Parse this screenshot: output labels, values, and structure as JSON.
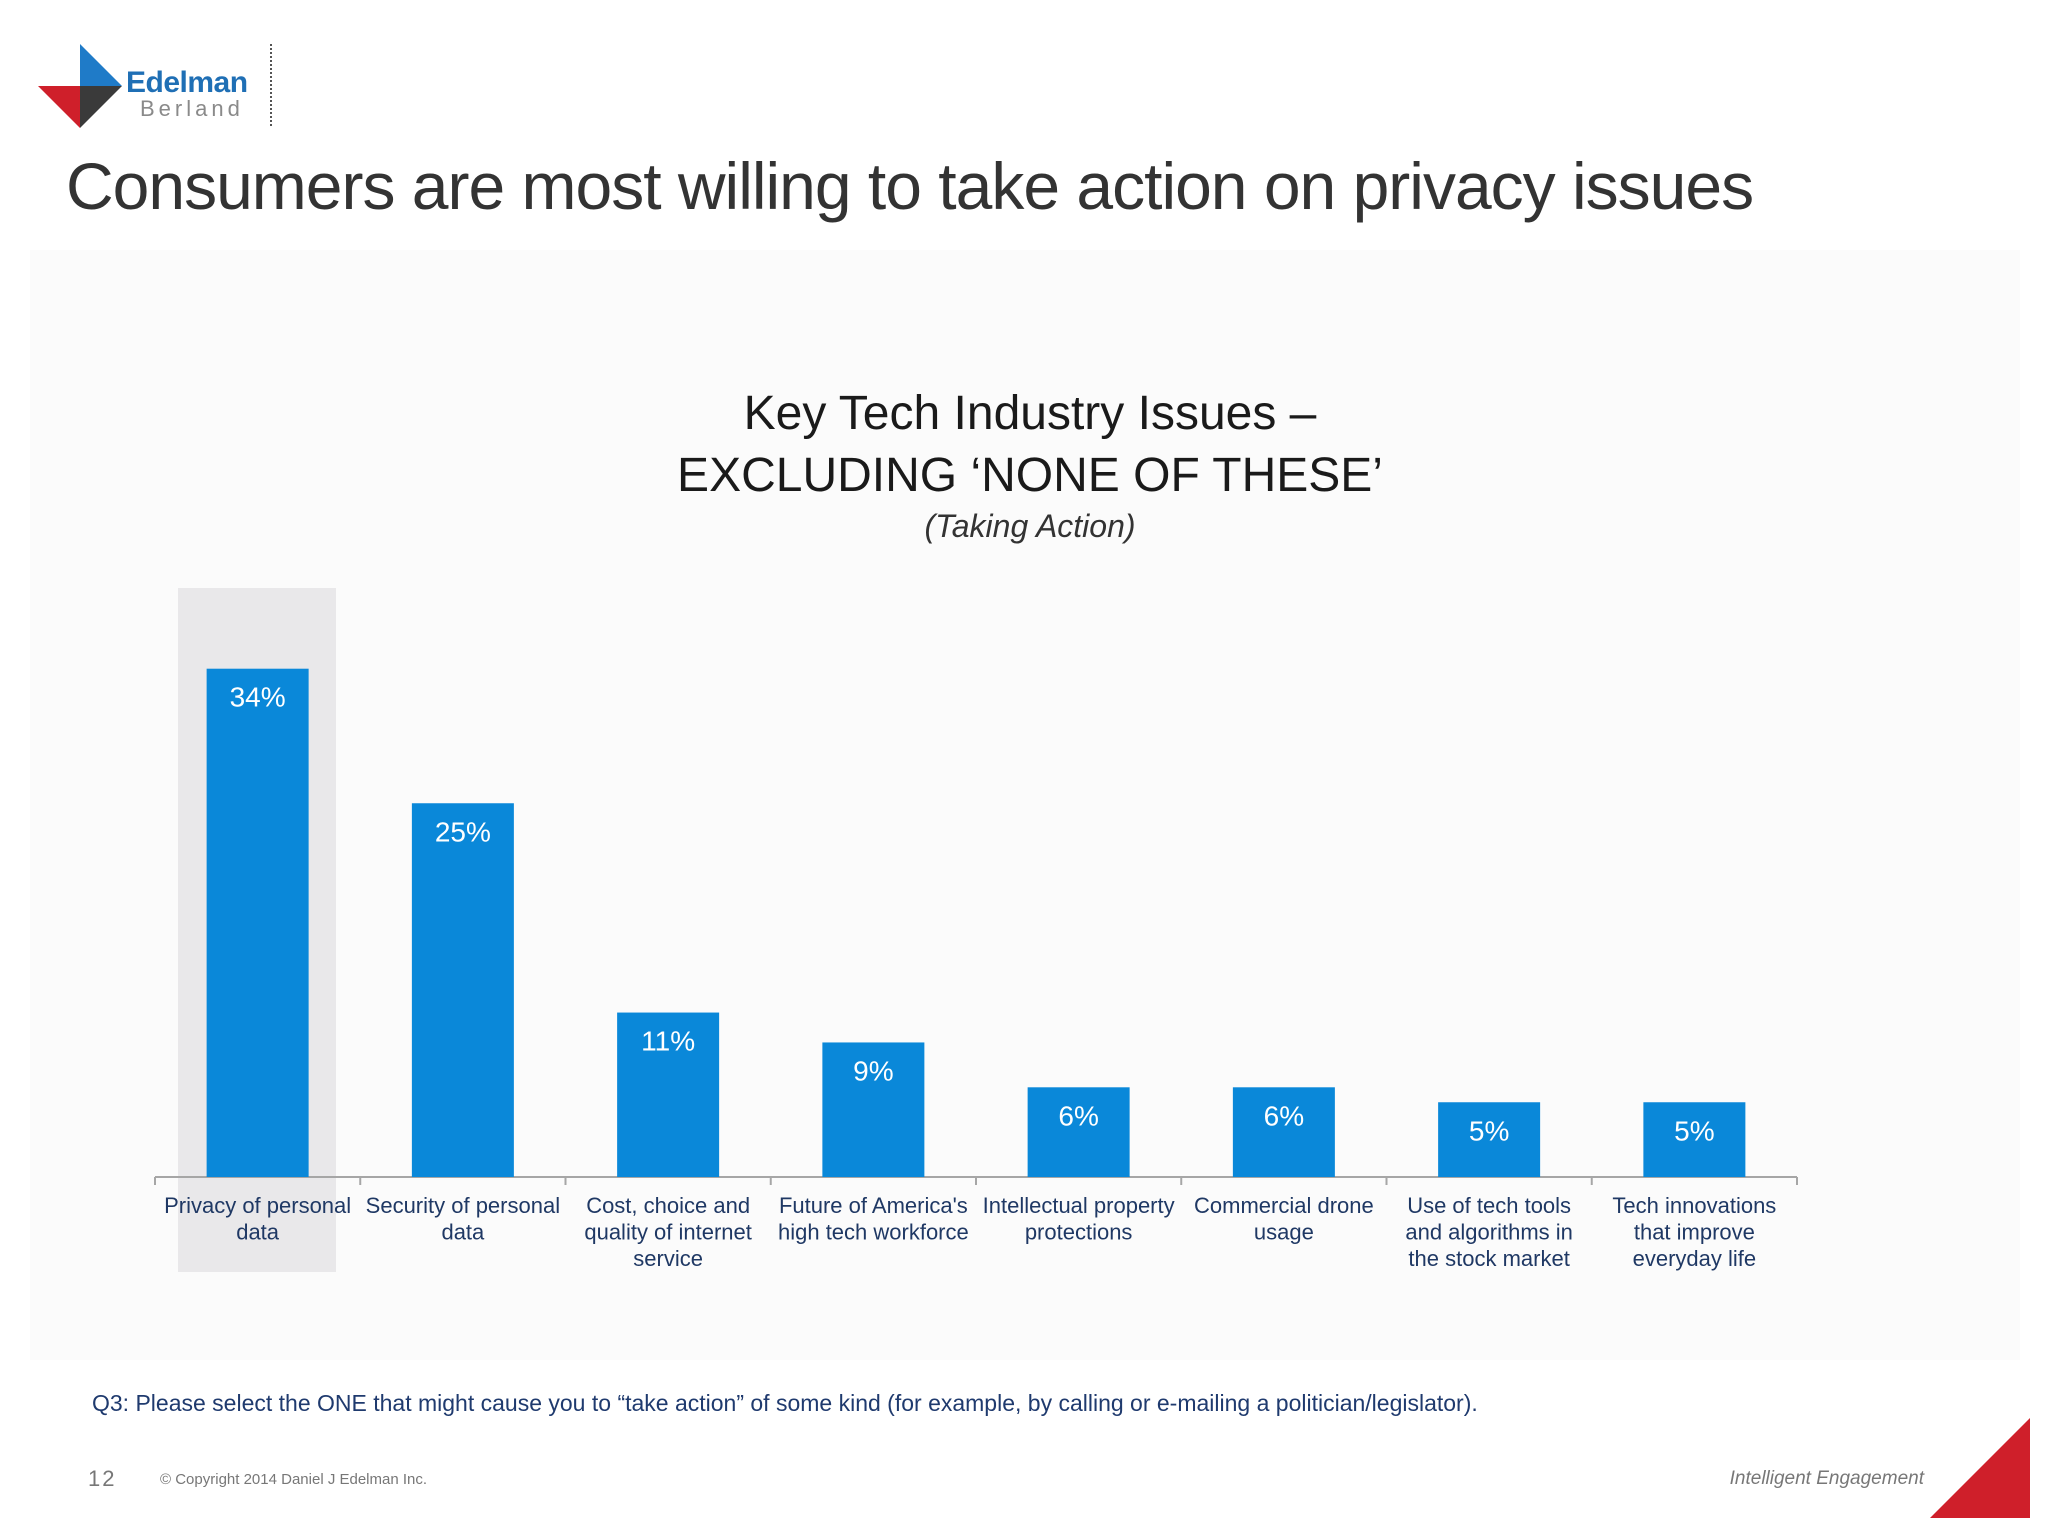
{
  "brand": {
    "name_line1": "Edelman",
    "name_line2": "Berland",
    "blue": "#1f7bc8",
    "red": "#cf1f2a",
    "dark": "#333333"
  },
  "header": {
    "title": "Consumers are most willing to take action on privacy issues"
  },
  "footer": {
    "question": "Q3: Please select the ONE that might cause you to “take action” of some kind (for example, by calling or e-mailing a politician/legislator).",
    "page_number": "12",
    "copyright": "© Copyright 2014 Daniel J Edelman Inc.",
    "tagline": "Intelligent Engagement"
  },
  "chart_data": {
    "type": "bar",
    "title_line1": "Key Tech Industry Issues –",
    "title_line2": "EXCLUDING ‘NONE OF THESE’",
    "subtitle": "(Taking Action)",
    "categories": [
      [
        "Privacy of personal",
        "data"
      ],
      [
        "Security of personal",
        "data"
      ],
      [
        "Cost, choice and",
        "quality of internet",
        "service"
      ],
      [
        "Future of America's",
        "high tech workforce"
      ],
      [
        "Intellectual property",
        "protections"
      ],
      [
        "Commercial drone",
        "usage"
      ],
      [
        "Use of tech tools",
        "and algorithms in",
        "the stock market"
      ],
      [
        "Tech innovations",
        "that improve",
        "everyday life"
      ]
    ],
    "values": [
      34,
      25,
      11,
      9,
      6,
      6,
      5,
      5
    ],
    "value_labels": [
      "34%",
      "25%",
      "11%",
      "9%",
      "6%",
      "6%",
      "5%",
      "5%"
    ],
    "ylim": [
      0,
      40
    ],
    "highlighted_index": 0,
    "bar_color": "#0a88d9",
    "grid": false,
    "legend": "none"
  }
}
